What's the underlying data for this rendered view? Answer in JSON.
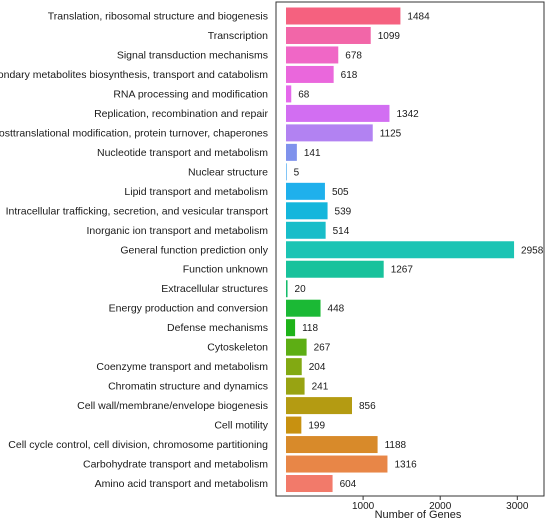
{
  "chart_data": {
    "type": "bar",
    "orientation": "horizontal",
    "xlabel": "Number of Genes",
    "ylabel": "",
    "title": "",
    "xlim": [
      0,
      3100
    ],
    "xticks": [
      1000,
      2000,
      3000
    ],
    "grid": false,
    "legend": "none",
    "categories": [
      "Translation, ribosomal structure and biogenesis",
      "Transcription",
      "Signal transduction mechanisms",
      "Secondary metabolites biosynthesis, transport and catabolism",
      "RNA processing and modification",
      "Replication, recombination and repair",
      "Posttranslational modification, protein turnover, chaperones",
      "Nucleotide transport and metabolism",
      "Nuclear structure",
      "Lipid transport and metabolism",
      "Intracellular trafficking, secretion, and vesicular transport",
      "Inorganic ion transport and metabolism",
      "General function prediction only",
      "Function unknown",
      "Extracellular structures",
      "Energy production and conversion",
      "Defense mechanisms",
      "Cytoskeleton",
      "Coenzyme transport and metabolism",
      "Chromatin structure and dynamics",
      "Cell wall/membrane/envelope biogenesis",
      "Cell motility",
      "Cell cycle control, cell division, chromosome partitioning",
      "Carbohydrate transport and metabolism",
      "Amino acid transport and metabolism"
    ],
    "values": [
      1484,
      1099,
      678,
      618,
      68,
      1342,
      1125,
      141,
      5,
      505,
      539,
      514,
      2958,
      1267,
      20,
      448,
      118,
      267,
      204,
      241,
      856,
      199,
      1188,
      1316,
      604
    ],
    "colors": [
      "#f5617f",
      "#f266a8",
      "#f067c6",
      "#ea67dc",
      "#e568ec",
      "#d26ef2",
      "#b282f2",
      "#7f92ec",
      "#2f9ef0",
      "#1fb0ec",
      "#14b6dc",
      "#18bdc9",
      "#1cc4b4",
      "#18c29c",
      "#15bc6b",
      "#1bb935",
      "#1eb319",
      "#5dae14",
      "#82a912",
      "#98a312",
      "#b49b12",
      "#c89110",
      "#d88a2a",
      "#e88647",
      "#f27a6a"
    ]
  }
}
